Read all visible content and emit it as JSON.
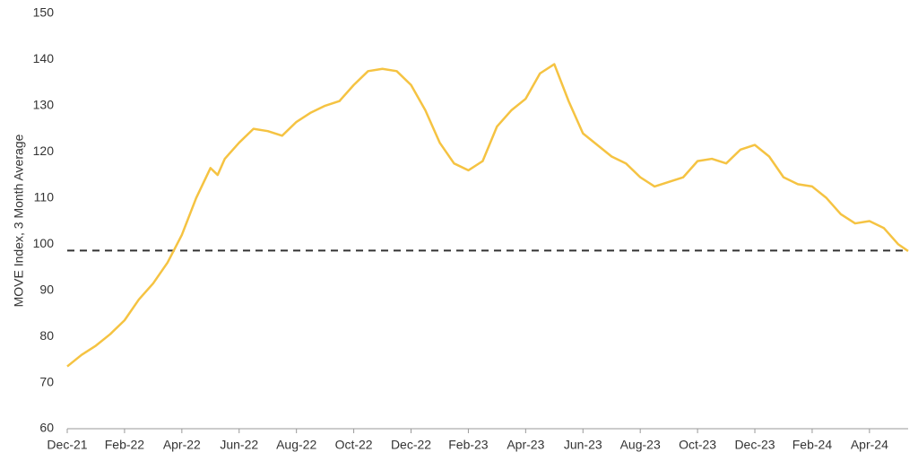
{
  "chart_data": {
    "type": "line",
    "y_label": "MOVE Index, 3 Month Average",
    "x": [
      0,
      0.5,
      1,
      1.5,
      2,
      2.5,
      3,
      3.5,
      4,
      4.5,
      5,
      5.25,
      5.5,
      6,
      6.5,
      7,
      7.5,
      8,
      8.5,
      9,
      9.5,
      10,
      10.5,
      11,
      11.5,
      12,
      12.5,
      13,
      13.5,
      14,
      14.5,
      15,
      15.5,
      16,
      16.5,
      17,
      17.5,
      18,
      18.5,
      19,
      19.5,
      20,
      20.5,
      21,
      21.5,
      22,
      22.5,
      23,
      23.5,
      24,
      24.5,
      25,
      25.5,
      26,
      26.5,
      27,
      27.5,
      28,
      28.5,
      29,
      29.35
    ],
    "series": [
      {
        "name": "MOVE Index, 3 Month Average",
        "color": "#f5c342",
        "values": [
          73.5,
          76,
          78,
          80.5,
          83.5,
          88,
          91.5,
          96,
          102,
          110,
          116.5,
          115,
          118.5,
          122,
          125,
          124.5,
          123.5,
          126.5,
          128.5,
          130,
          131,
          134.5,
          137.5,
          138,
          137.5,
          134.5,
          129,
          122,
          117.5,
          116,
          118,
          125.5,
          129,
          131.5,
          137,
          139,
          131,
          124,
          121.5,
          119,
          117.5,
          114.5,
          112.5,
          113.5,
          114.5,
          118,
          118.5,
          117.5,
          120.5,
          121.5,
          119,
          114.5,
          113,
          112.5,
          110,
          106.5,
          104.5,
          105,
          103.5,
          100,
          98.5
        ]
      }
    ],
    "reference_line": 98.6,
    "xlim": [
      0,
      29.35
    ],
    "xticks": [
      {
        "value": 0,
        "label": "Dec-21"
      },
      {
        "value": 2,
        "label": "Feb-22"
      },
      {
        "value": 4,
        "label": "Apr-22"
      },
      {
        "value": 6,
        "label": "Jun-22"
      },
      {
        "value": 8,
        "label": "Aug-22"
      },
      {
        "value": 10,
        "label": "Oct-22"
      },
      {
        "value": 12,
        "label": "Dec-22"
      },
      {
        "value": 14,
        "label": "Feb-23"
      },
      {
        "value": 16,
        "label": "Apr-23"
      },
      {
        "value": 18,
        "label": "Jun-23"
      },
      {
        "value": 20,
        "label": "Aug-23"
      },
      {
        "value": 22,
        "label": "Oct-23"
      },
      {
        "value": 24,
        "label": "Dec-23"
      },
      {
        "value": 26,
        "label": "Feb-24"
      },
      {
        "value": 28,
        "label": "Apr-24"
      }
    ],
    "ylim": [
      60,
      150
    ],
    "yticks": [
      60,
      70,
      80,
      90,
      100,
      110,
      120,
      130,
      140,
      150
    ],
    "grid": false
  }
}
